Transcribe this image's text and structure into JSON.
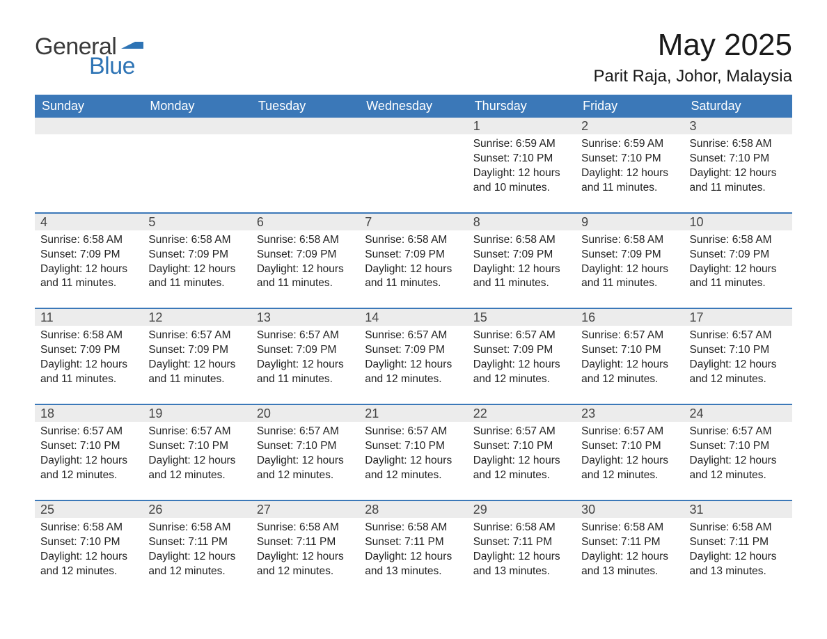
{
  "logo": {
    "word1": "General",
    "word2": "Blue",
    "flag_color": "#2e74b5"
  },
  "header": {
    "title": "May 2025",
    "location": "Parit Raja, Johor, Malaysia"
  },
  "style": {
    "header_bg": "#3b78b8",
    "header_text": "#ffffff",
    "daynum_bg": "#ececec",
    "row_border": "#3b78b8",
    "text_color": "#222222"
  },
  "weekdays": [
    "Sunday",
    "Monday",
    "Tuesday",
    "Wednesday",
    "Thursday",
    "Friday",
    "Saturday"
  ],
  "labels": {
    "sunrise": "Sunrise:",
    "sunset": "Sunset:",
    "daylight": "Daylight:"
  },
  "weeks": [
    [
      null,
      null,
      null,
      null,
      {
        "n": "1",
        "sr": "6:59 AM",
        "ss": "7:10 PM",
        "dl": "12 hours and 10 minutes."
      },
      {
        "n": "2",
        "sr": "6:59 AM",
        "ss": "7:10 PM",
        "dl": "12 hours and 11 minutes."
      },
      {
        "n": "3",
        "sr": "6:58 AM",
        "ss": "7:10 PM",
        "dl": "12 hours and 11 minutes."
      }
    ],
    [
      {
        "n": "4",
        "sr": "6:58 AM",
        "ss": "7:09 PM",
        "dl": "12 hours and 11 minutes."
      },
      {
        "n": "5",
        "sr": "6:58 AM",
        "ss": "7:09 PM",
        "dl": "12 hours and 11 minutes."
      },
      {
        "n": "6",
        "sr": "6:58 AM",
        "ss": "7:09 PM",
        "dl": "12 hours and 11 minutes."
      },
      {
        "n": "7",
        "sr": "6:58 AM",
        "ss": "7:09 PM",
        "dl": "12 hours and 11 minutes."
      },
      {
        "n": "8",
        "sr": "6:58 AM",
        "ss": "7:09 PM",
        "dl": "12 hours and 11 minutes."
      },
      {
        "n": "9",
        "sr": "6:58 AM",
        "ss": "7:09 PM",
        "dl": "12 hours and 11 minutes."
      },
      {
        "n": "10",
        "sr": "6:58 AM",
        "ss": "7:09 PM",
        "dl": "12 hours and 11 minutes."
      }
    ],
    [
      {
        "n": "11",
        "sr": "6:58 AM",
        "ss": "7:09 PM",
        "dl": "12 hours and 11 minutes."
      },
      {
        "n": "12",
        "sr": "6:57 AM",
        "ss": "7:09 PM",
        "dl": "12 hours and 11 minutes."
      },
      {
        "n": "13",
        "sr": "6:57 AM",
        "ss": "7:09 PM",
        "dl": "12 hours and 11 minutes."
      },
      {
        "n": "14",
        "sr": "6:57 AM",
        "ss": "7:09 PM",
        "dl": "12 hours and 12 minutes."
      },
      {
        "n": "15",
        "sr": "6:57 AM",
        "ss": "7:09 PM",
        "dl": "12 hours and 12 minutes."
      },
      {
        "n": "16",
        "sr": "6:57 AM",
        "ss": "7:10 PM",
        "dl": "12 hours and 12 minutes."
      },
      {
        "n": "17",
        "sr": "6:57 AM",
        "ss": "7:10 PM",
        "dl": "12 hours and 12 minutes."
      }
    ],
    [
      {
        "n": "18",
        "sr": "6:57 AM",
        "ss": "7:10 PM",
        "dl": "12 hours and 12 minutes."
      },
      {
        "n": "19",
        "sr": "6:57 AM",
        "ss": "7:10 PM",
        "dl": "12 hours and 12 minutes."
      },
      {
        "n": "20",
        "sr": "6:57 AM",
        "ss": "7:10 PM",
        "dl": "12 hours and 12 minutes."
      },
      {
        "n": "21",
        "sr": "6:57 AM",
        "ss": "7:10 PM",
        "dl": "12 hours and 12 minutes."
      },
      {
        "n": "22",
        "sr": "6:57 AM",
        "ss": "7:10 PM",
        "dl": "12 hours and 12 minutes."
      },
      {
        "n": "23",
        "sr": "6:57 AM",
        "ss": "7:10 PM",
        "dl": "12 hours and 12 minutes."
      },
      {
        "n": "24",
        "sr": "6:57 AM",
        "ss": "7:10 PM",
        "dl": "12 hours and 12 minutes."
      }
    ],
    [
      {
        "n": "25",
        "sr": "6:58 AM",
        "ss": "7:10 PM",
        "dl": "12 hours and 12 minutes."
      },
      {
        "n": "26",
        "sr": "6:58 AM",
        "ss": "7:11 PM",
        "dl": "12 hours and 12 minutes."
      },
      {
        "n": "27",
        "sr": "6:58 AM",
        "ss": "7:11 PM",
        "dl": "12 hours and 12 minutes."
      },
      {
        "n": "28",
        "sr": "6:58 AM",
        "ss": "7:11 PM",
        "dl": "12 hours and 13 minutes."
      },
      {
        "n": "29",
        "sr": "6:58 AM",
        "ss": "7:11 PM",
        "dl": "12 hours and 13 minutes."
      },
      {
        "n": "30",
        "sr": "6:58 AM",
        "ss": "7:11 PM",
        "dl": "12 hours and 13 minutes."
      },
      {
        "n": "31",
        "sr": "6:58 AM",
        "ss": "7:11 PM",
        "dl": "12 hours and 13 minutes."
      }
    ]
  ]
}
